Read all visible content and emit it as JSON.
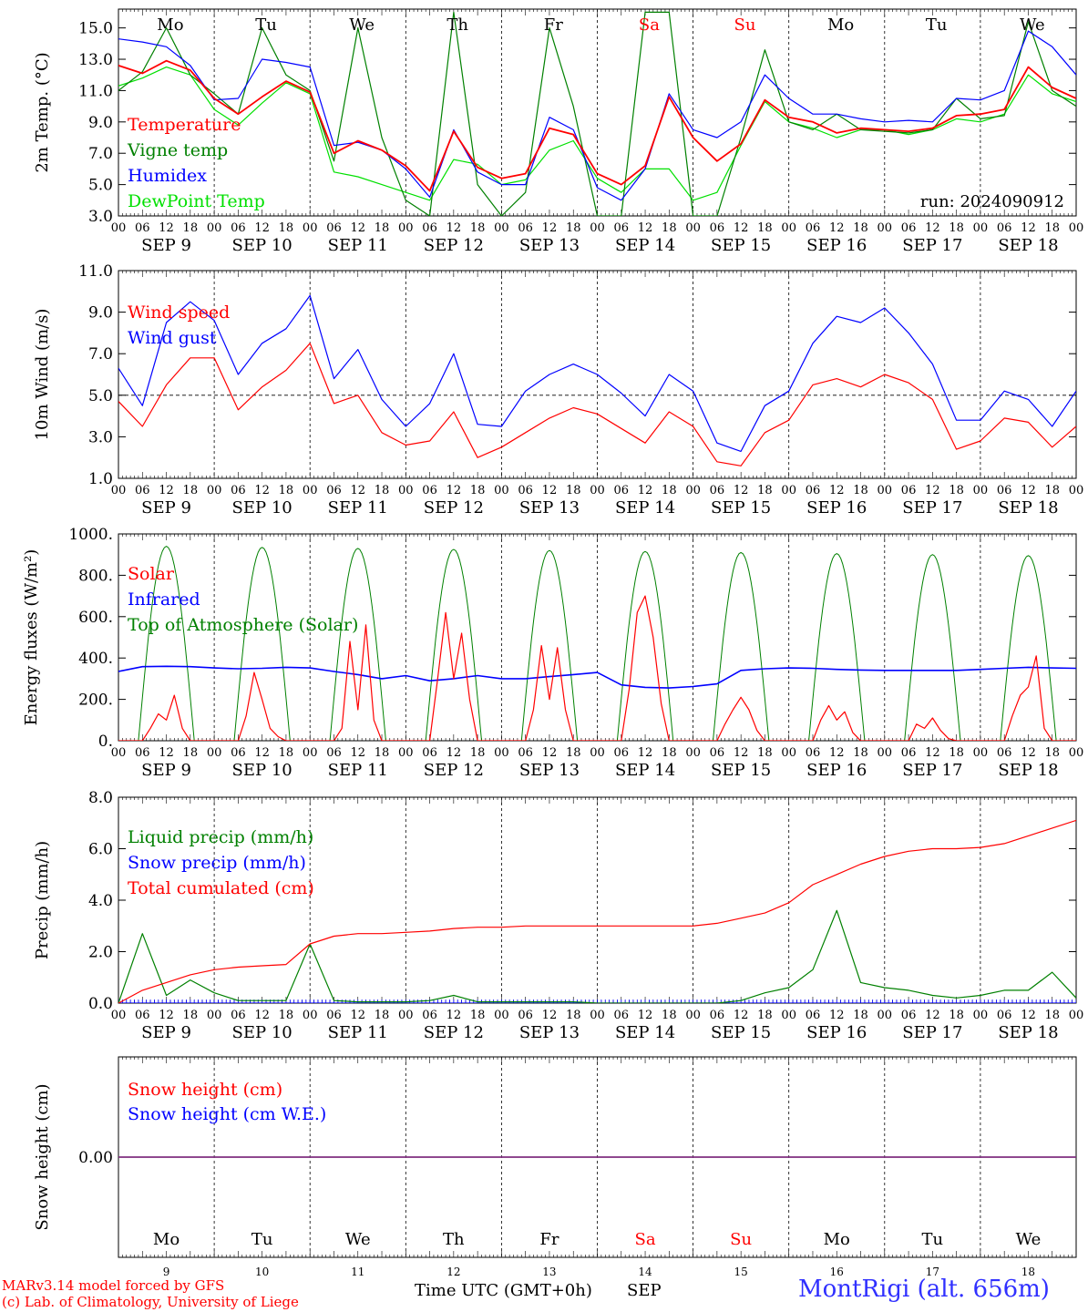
{
  "colors": {
    "red": "#ff0000",
    "green": "#008000",
    "blue": "#0000ff",
    "lightgreen": "#00e000",
    "purple": "#7f2f7f",
    "weekend": "#ff0000"
  },
  "days": {
    "weekday_labels": [
      "Mo",
      "Tu",
      "We",
      "Th",
      "Fr",
      "Sa",
      "Su",
      "Mo",
      "Tu",
      "We"
    ],
    "weekend_flags": [
      false,
      false,
      false,
      false,
      false,
      true,
      true,
      false,
      false,
      false
    ],
    "date_labels": [
      "SEP  9",
      "SEP 10",
      "SEP 11",
      "SEP 12",
      "SEP 13",
      "SEP 14",
      "SEP 15",
      "SEP 16",
      "SEP 17",
      "SEP 18"
    ],
    "day_numbers": [
      "9",
      "10",
      "11",
      "12",
      "13",
      "14",
      "15",
      "16",
      "17",
      "18"
    ],
    "hour_labels": [
      "00",
      "06",
      "12",
      "18"
    ],
    "final_hour_label": "00"
  },
  "footer": {
    "model": "MARv3.14 model forced by GFS",
    "lab": "(c) Lab. of Climatology, University of Liege",
    "time_axis": "Time UTC (GMT+0h)",
    "month": "SEP",
    "station": "MontRigi (alt. 656m)"
  },
  "chart_data": [
    {
      "type": "line",
      "ylabel": "2m Temp. (°C)",
      "ylim": [
        3.0,
        16.2
      ],
      "yticks": [
        "3.0",
        "5.0",
        "7.0",
        "9.0",
        "11.0",
        "13.0",
        "15.0"
      ],
      "annotation": "run: 2024090912",
      "x_hours": [
        0,
        6,
        12,
        18,
        24,
        30,
        36,
        42,
        48,
        54,
        60,
        66,
        72,
        78,
        84,
        90,
        96,
        102,
        108,
        114,
        120,
        126,
        132,
        138,
        144,
        150,
        156,
        162,
        168,
        174,
        180,
        186,
        192,
        198,
        204,
        210,
        216,
        222,
        228,
        234,
        240
      ],
      "series": [
        {
          "name": "Temperature",
          "color": "#ff0000",
          "values": [
            12.6,
            12.1,
            12.9,
            12.3,
            10.5,
            9.5,
            10.6,
            11.6,
            10.9,
            7.0,
            7.8,
            7.2,
            6.2,
            4.6,
            8.4,
            6.1,
            5.4,
            5.7,
            8.6,
            8.2,
            5.7,
            5.0,
            6.2,
            10.6,
            8.0,
            6.5,
            7.6,
            10.4,
            9.3,
            9.0,
            8.3,
            8.6,
            8.5,
            8.4,
            8.6,
            9.4,
            9.5,
            9.8,
            12.5,
            11.2,
            10.5
          ]
        },
        {
          "name": "Vigne temp",
          "color": "#008000",
          "values": [
            11.0,
            12.2,
            15.0,
            12.0,
            10.8,
            9.5,
            15.0,
            12.0,
            11.0,
            6.5,
            15.0,
            8.0,
            4.0,
            3.0,
            16.0,
            5.0,
            3.0,
            4.5,
            15.0,
            10.0,
            3.0,
            3.0,
            16.0,
            16.0,
            3.0,
            3.0,
            8.0,
            13.6,
            9.0,
            8.5,
            9.5,
            8.5,
            8.4,
            8.3,
            8.5,
            10.5,
            9.2,
            9.4,
            15.4,
            11.0,
            10.0
          ]
        },
        {
          "name": "Humidex",
          "color": "#0000ff",
          "values": [
            14.3,
            14.1,
            13.8,
            12.6,
            10.4,
            10.5,
            13.0,
            12.8,
            12.5,
            7.5,
            7.7,
            7.2,
            6.0,
            4.2,
            8.5,
            5.8,
            5.0,
            5.0,
            9.3,
            8.5,
            4.8,
            4.0,
            6.0,
            10.8,
            8.5,
            8.0,
            9.0,
            12.0,
            10.5,
            9.5,
            9.5,
            9.2,
            9.0,
            9.1,
            9.0,
            10.5,
            10.4,
            11.0,
            14.8,
            13.8,
            12.0
          ]
        },
        {
          "name": "DewPoint Temp",
          "color": "#00e000",
          "values": [
            11.3,
            11.8,
            12.5,
            12.0,
            9.8,
            8.8,
            10.2,
            11.5,
            10.8,
            5.8,
            5.5,
            5.0,
            4.5,
            4.0,
            6.6,
            6.3,
            5.0,
            5.3,
            7.2,
            7.8,
            5.4,
            4.5,
            6.0,
            6.0,
            4.0,
            4.5,
            7.5,
            10.3,
            9.0,
            8.6,
            8.0,
            8.5,
            8.5,
            8.2,
            8.5,
            9.2,
            9.0,
            9.5,
            12.0,
            10.8,
            10.3
          ]
        }
      ]
    },
    {
      "type": "line",
      "ylabel": "10m Wind (m/s)",
      "ylim": [
        1.0,
        11.0
      ],
      "yticks": [
        "1.0",
        "3.0",
        "5.0",
        "7.0",
        "9.0",
        "11.0"
      ],
      "reference_line": 5.0,
      "x_hours": [
        0,
        6,
        12,
        18,
        24,
        30,
        36,
        42,
        48,
        54,
        60,
        66,
        72,
        78,
        84,
        90,
        96,
        102,
        108,
        114,
        120,
        126,
        132,
        138,
        144,
        150,
        156,
        162,
        168,
        174,
        180,
        186,
        192,
        198,
        204,
        210,
        216,
        222,
        228,
        234,
        240
      ],
      "series": [
        {
          "name": "Wind speed",
          "color": "#ff0000",
          "values": [
            4.7,
            3.5,
            5.5,
            6.8,
            6.8,
            4.3,
            5.4,
            6.2,
            7.5,
            4.6,
            5.0,
            3.2,
            2.6,
            2.8,
            4.2,
            2.0,
            2.5,
            3.2,
            3.9,
            4.4,
            4.1,
            3.4,
            2.7,
            4.2,
            3.5,
            1.8,
            1.6,
            3.2,
            3.8,
            5.5,
            5.8,
            5.4,
            6.0,
            5.6,
            4.8,
            2.4,
            2.8,
            3.9,
            3.7,
            2.5,
            3.5
          ]
        },
        {
          "name": "Wind gust",
          "color": "#0000ff",
          "values": [
            6.3,
            4.5,
            8.5,
            9.5,
            8.6,
            6.0,
            7.5,
            8.2,
            9.8,
            5.8,
            7.2,
            4.8,
            3.5,
            4.6,
            7.0,
            3.6,
            3.5,
            5.2,
            6.0,
            6.5,
            6.0,
            5.1,
            4.0,
            6.0,
            5.2,
            2.7,
            2.3,
            4.5,
            5.2,
            7.5,
            8.8,
            8.5,
            9.2,
            8.0,
            6.5,
            3.8,
            3.8,
            5.2,
            4.8,
            3.5,
            5.2
          ]
        }
      ]
    },
    {
      "type": "line",
      "ylabel": "Energy fluxes (W/m²)",
      "ylim": [
        0,
        1000
      ],
      "yticks": [
        "0.",
        "200.",
        "400.",
        "600.",
        "800.",
        "1000."
      ],
      "solar_x_hours": [
        0,
        6,
        8,
        10,
        12,
        14,
        16,
        18,
        24,
        30,
        32,
        34,
        36,
        38,
        40,
        42,
        48,
        54,
        56,
        58,
        60,
        62,
        64,
        66,
        72,
        78,
        80,
        82,
        84,
        86,
        88,
        90,
        96,
        102,
        104,
        106,
        108,
        110,
        112,
        114,
        120,
        126,
        128,
        130,
        132,
        134,
        136,
        138,
        144,
        150,
        152,
        154,
        156,
        158,
        160,
        162,
        168,
        174,
        176,
        178,
        180,
        182,
        184,
        186,
        192,
        198,
        200,
        202,
        204,
        206,
        208,
        210,
        216,
        222,
        224,
        226,
        228,
        230,
        232,
        234,
        240
      ],
      "series": [
        {
          "name": "Solar",
          "color": "#ff0000",
          "values": [
            0,
            0,
            60,
            130,
            100,
            220,
            60,
            0,
            0,
            0,
            120,
            330,
            200,
            60,
            20,
            0,
            0,
            0,
            60,
            480,
            150,
            560,
            100,
            0,
            0,
            0,
            300,
            620,
            300,
            520,
            200,
            0,
            0,
            0,
            150,
            460,
            200,
            450,
            150,
            0,
            0,
            0,
            250,
            620,
            700,
            500,
            180,
            0,
            0,
            0,
            80,
            150,
            210,
            150,
            50,
            0,
            0,
            0,
            100,
            170,
            100,
            140,
            40,
            0,
            0,
            0,
            80,
            60,
            110,
            50,
            10,
            0,
            0,
            0,
            120,
            220,
            260,
            410,
            60,
            0,
            0
          ]
        },
        {
          "name": "Infrared",
          "color": "#0000ff",
          "x_hours": [
            0,
            6,
            12,
            18,
            24,
            30,
            36,
            42,
            48,
            54,
            60,
            66,
            72,
            78,
            84,
            90,
            96,
            102,
            108,
            114,
            120,
            126,
            132,
            138,
            144,
            150,
            156,
            162,
            168,
            174,
            180,
            186,
            192,
            198,
            204,
            210,
            216,
            222,
            228,
            234,
            240
          ],
          "values": [
            335,
            358,
            360,
            358,
            352,
            348,
            350,
            355,
            352,
            335,
            320,
            300,
            315,
            290,
            300,
            315,
            300,
            300,
            310,
            320,
            330,
            270,
            258,
            255,
            262,
            275,
            340,
            348,
            352,
            350,
            345,
            342,
            340,
            340,
            340,
            340,
            345,
            350,
            355,
            352,
            350
          ]
        },
        {
          "name": "Top of Atmosphere (Solar)",
          "color": "#008000",
          "peaks": [
            940,
            935,
            930,
            925,
            920,
            915,
            910,
            905,
            900,
            895
          ]
        }
      ]
    },
    {
      "type": "line",
      "ylabel": "Precip (mm/h)",
      "ylim": [
        0,
        8.0
      ],
      "yticks": [
        "0.0",
        "2.0",
        "4.0",
        "6.0",
        "8.0"
      ],
      "x_hours": [
        0,
        6,
        12,
        18,
        24,
        30,
        36,
        42,
        48,
        54,
        60,
        66,
        72,
        78,
        84,
        90,
        96,
        102,
        108,
        114,
        120,
        126,
        132,
        138,
        144,
        150,
        156,
        162,
        168,
        174,
        180,
        186,
        192,
        198,
        204,
        210,
        216,
        222,
        228,
        234,
        240
      ],
      "series": [
        {
          "name": "Liquid precip (mm/h)",
          "color": "#008000",
          "values": [
            0,
            2.7,
            0.3,
            0.9,
            0.4,
            0.1,
            0.1,
            0.1,
            2.3,
            0.1,
            0.05,
            0.05,
            0.05,
            0.1,
            0.3,
            0.05,
            0.05,
            0.05,
            0.05,
            0.05,
            0,
            0,
            0,
            0,
            0,
            0,
            0.1,
            0.4,
            0.6,
            1.3,
            3.6,
            0.8,
            0.6,
            0.5,
            0.3,
            0.2,
            0.3,
            0.5,
            0.5,
            1.2,
            0.2
          ]
        },
        {
          "name": "Snow precip (mm/h)",
          "color": "#0000ff",
          "values": [
            0,
            0,
            0,
            0,
            0,
            0,
            0,
            0,
            0,
            0,
            0,
            0,
            0,
            0,
            0,
            0,
            0,
            0,
            0,
            0,
            0,
            0,
            0,
            0,
            0,
            0,
            0,
            0,
            0,
            0,
            0,
            0,
            0,
            0,
            0,
            0,
            0,
            0,
            0,
            0,
            0
          ]
        },
        {
          "name": "Total cumulated (cm)",
          "color": "#ff0000",
          "values": [
            0,
            0.5,
            0.8,
            1.1,
            1.3,
            1.4,
            1.45,
            1.5,
            2.3,
            2.6,
            2.7,
            2.7,
            2.75,
            2.8,
            2.9,
            2.95,
            2.95,
            3.0,
            3.0,
            3.0,
            3.0,
            3.0,
            3.0,
            3.0,
            3.0,
            3.1,
            3.3,
            3.5,
            3.9,
            4.6,
            5.0,
            5.4,
            5.7,
            5.9,
            6.0,
            6.0,
            6.05,
            6.2,
            6.5,
            6.8,
            7.1
          ]
        }
      ]
    },
    {
      "type": "line",
      "ylabel": "Snow height (cm)",
      "ylim": [
        -1,
        1
      ],
      "yticks": [
        "0.00"
      ],
      "series": [
        {
          "name": "Snow height (cm)",
          "color": "#ff0000",
          "values": [
            0,
            0
          ]
        },
        {
          "name": "Snow height (cm W.E.)",
          "color": "#0000ff",
          "values": [
            0,
            0
          ]
        }
      ]
    }
  ]
}
